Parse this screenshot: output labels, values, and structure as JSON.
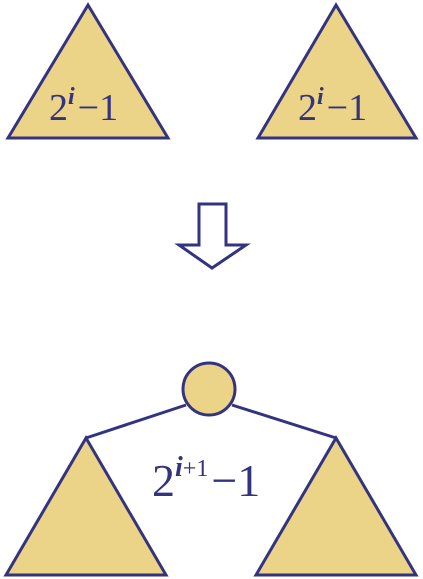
{
  "top_left": {
    "base": "2",
    "exponent": "i",
    "suffix": "−1"
  },
  "top_right": {
    "base": "2",
    "exponent": "i",
    "suffix": "−1"
  },
  "combined": {
    "base": "2",
    "exponent_var": "i",
    "exponent_rest": "+1",
    "suffix": "−1"
  },
  "colors": {
    "fill": "#ebd387",
    "stroke": "#333380",
    "arrow_fill": "#ffffff"
  }
}
